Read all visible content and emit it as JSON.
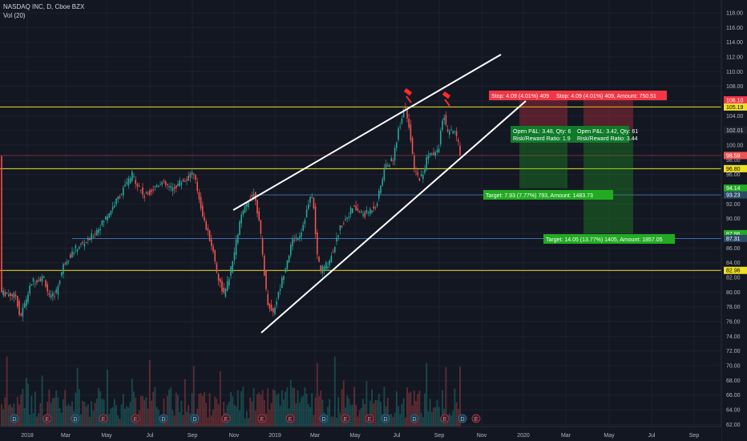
{
  "header": {
    "symbol_line": "NASDAQ INC, D, Cboe BZX",
    "volume_label": "Vol (20)"
  },
  "colors": {
    "background": "#131722",
    "up": "#26a69a",
    "down": "#ef5350",
    "level": "#f0e024",
    "stop": "#f23645",
    "target": "#22ab22"
  },
  "price_axis": {
    "ticks": [
      "118.00",
      "116.00",
      "114.00",
      "112.00",
      "110.00",
      "108.00",
      "106.00",
      "104.00",
      "102.00",
      "100.00",
      "98.00",
      "96.00",
      "94.00",
      "92.00",
      "90.00",
      "88.00",
      "86.00",
      "84.00",
      "82.00",
      "80.00",
      "78.00",
      "76.00",
      "74.00",
      "72.00",
      "70.00",
      "68.00",
      "66.00",
      "64.00",
      "62.00"
    ],
    "labels": [
      {
        "text": "106.16",
        "kind": "stop"
      },
      {
        "text": "106.10",
        "kind": "stop"
      },
      {
        "text": "105.19",
        "kind": "level"
      },
      {
        "text": "102.07",
        "kind": "dark"
      },
      {
        "text": "102.01",
        "kind": "dark"
      },
      {
        "text": "98.59",
        "kind": "down"
      },
      {
        "text": "96.80",
        "kind": "level"
      },
      {
        "text": "94.14",
        "kind": "target"
      },
      {
        "text": "93.23",
        "kind": "blue"
      },
      {
        "text": "87.96",
        "kind": "target"
      },
      {
        "text": "87.31",
        "kind": "blue"
      },
      {
        "text": "82.96",
        "kind": "level"
      }
    ]
  },
  "time_axis": [
    "2018",
    "Mar",
    "May",
    "Jul",
    "Sep",
    "Nov",
    "2019",
    "Mar",
    "May",
    "Jul",
    "Sep",
    "Nov",
    "2020",
    "Mar",
    "May",
    "Jul",
    "Sep"
  ],
  "positions": [
    {
      "stop_label": "Stop: 4.09 (4.01%) 409",
      "pnl_label": "Open P&L: 3.48, Qty: 6",
      "rr_label": "Risk/Reward Ratio: 1.9",
      "target_label": "Target: 7.93 (7.77%) 793, Amount: 1483.73"
    },
    {
      "stop_label": "Stop: 4.09 (4.01%) 409, Amount: 750.51",
      "pnl_label": "Open P&L: 3.42, Qty: 61",
      "rr_label": "Risk/Reward Ratio: 3.44",
      "target_label": "Target: 14.05 (13.77%) 1405, Amount: 1857.05"
    }
  ],
  "events": {
    "dividend_letter": "D",
    "earnings_letter": "E"
  }
}
